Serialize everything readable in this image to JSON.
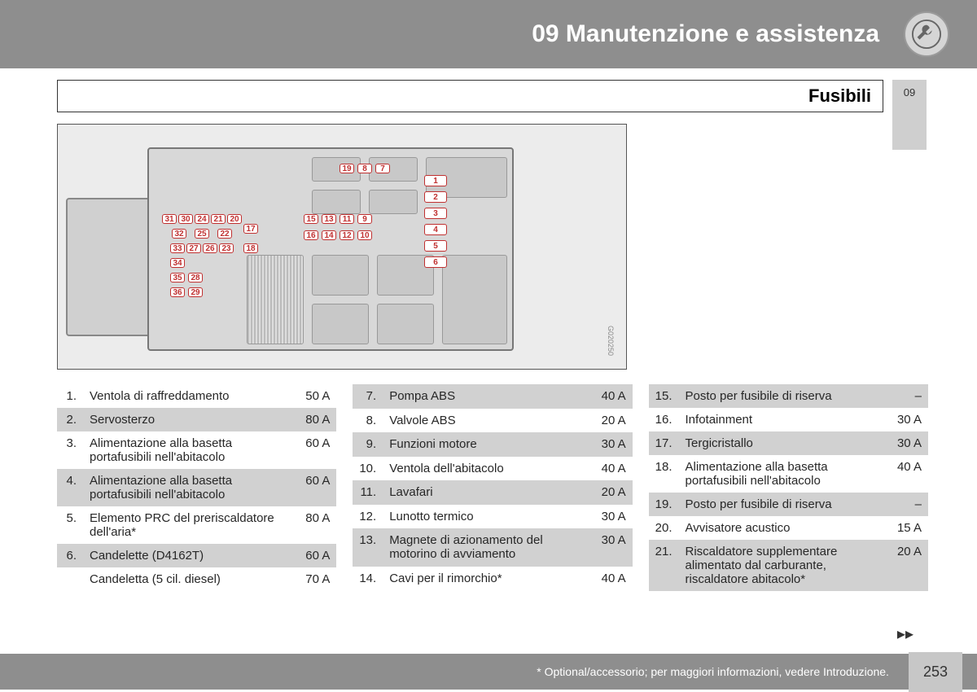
{
  "header": {
    "chapter": "09 Manutenzione e assistenza"
  },
  "subtitle": "Fusibili",
  "side_tab": "09",
  "diagram": {
    "code": "G020250",
    "fuse_numbers": [
      "1",
      "2",
      "3",
      "4",
      "5",
      "6",
      "7",
      "8",
      "9",
      "10",
      "11",
      "12",
      "13",
      "14",
      "15",
      "16",
      "17",
      "18",
      "19",
      "20",
      "21",
      "22",
      "23",
      "24",
      "25",
      "26",
      "27",
      "28",
      "29",
      "30",
      "31",
      "32",
      "33",
      "34",
      "35",
      "36"
    ]
  },
  "tables": [
    [
      {
        "n": "1.",
        "label": "Ventola di raffreddamento",
        "amp": "50 A",
        "alt": false
      },
      {
        "n": "2.",
        "label": "Servosterzo",
        "amp": "80 A",
        "alt": true
      },
      {
        "n": "3.",
        "label": "Alimentazione alla basetta portafusibili nell'abitacolo",
        "amp": "60 A",
        "alt": false
      },
      {
        "n": "4.",
        "label": "Alimentazione alla basetta portafusibili nell'abitacolo",
        "amp": "60 A",
        "alt": true
      },
      {
        "n": "5.",
        "label": "Elemento PRC del preriscaldatore dell'aria*",
        "amp": "80 A",
        "alt": false
      },
      {
        "n": "6.",
        "label": "Candelette (D4162T)",
        "amp": "60 A",
        "alt": true
      },
      {
        "n": "",
        "label": "Candeletta (5 cil. diesel)",
        "amp": "70 A",
        "alt": false
      }
    ],
    [
      {
        "n": "7.",
        "label": "Pompa ABS",
        "amp": "40 A",
        "alt": true
      },
      {
        "n": "8.",
        "label": "Valvole ABS",
        "amp": "20 A",
        "alt": false
      },
      {
        "n": "9.",
        "label": "Funzioni motore",
        "amp": "30 A",
        "alt": true
      },
      {
        "n": "10.",
        "label": "Ventola dell'abitacolo",
        "amp": "40 A",
        "alt": false
      },
      {
        "n": "11.",
        "label": "Lavafari",
        "amp": "20 A",
        "alt": true
      },
      {
        "n": "12.",
        "label": "Lunotto termico",
        "amp": "30 A",
        "alt": false
      },
      {
        "n": "13.",
        "label": "Magnete di azionamento del motorino di avviamento",
        "amp": "30 A",
        "alt": true
      },
      {
        "n": "14.",
        "label": "Cavi per il rimorchio*",
        "amp": "40 A",
        "alt": false
      }
    ],
    [
      {
        "n": "15.",
        "label": "Posto per fusibile di riserva",
        "amp": "–",
        "alt": true
      },
      {
        "n": "16.",
        "label": "Infotainment",
        "amp": "30 A",
        "alt": false
      },
      {
        "n": "17.",
        "label": "Tergicristallo",
        "amp": "30 A",
        "alt": true
      },
      {
        "n": "18.",
        "label": "Alimentazione alla basetta portafusibili nell'abitacolo",
        "amp": "40 A",
        "alt": false
      },
      {
        "n": "19.",
        "label": "Posto per fusibile di riserva",
        "amp": "–",
        "alt": true
      },
      {
        "n": "20.",
        "label": "Avvisatore acustico",
        "amp": "15 A",
        "alt": false
      },
      {
        "n": "21.",
        "label": "Riscaldatore supplementare alimentato dal carburante, riscaldatore abitacolo*",
        "amp": "20 A",
        "alt": true
      }
    ]
  ],
  "footer": {
    "note": "* Optional/accessorio; per maggiori informazioni, vedere Introduzione.",
    "page": "253"
  },
  "continue": "▸▸"
}
